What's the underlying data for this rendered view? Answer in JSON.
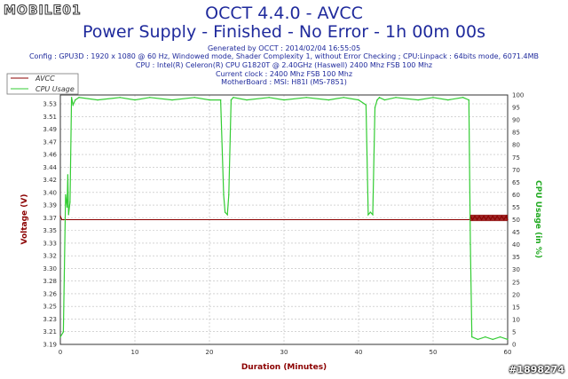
{
  "branding": {
    "logo_text": "MOBILE01",
    "watermark": "#1898274"
  },
  "header": {
    "title": "OCCT 4.4.0 - AVCC",
    "subtitle": "Power Supply - Finished - No Error - 1h 00m 00s",
    "generated": "Generated by OCCT : 2014/02/04 16:55:05",
    "config": "Config : GPU3D : 1920 x 1080 @ 60 Hz, Windowed mode, Shader Complexity 1, without Error Checking ; CPU:Linpack : 64bits mode, 6071.4MB",
    "cpu": "CPU : Intel(R) Celeron(R) CPU G1820T @ 2.40GHz (Haswell) 2400 Mhz FSB 100 Mhz",
    "clock": "Current clock : 2400 Mhz FSB 100 Mhz",
    "motherboard": "MotherBoard : MSI: H81I (MS-7851)"
  },
  "chart_data": {
    "type": "line",
    "xlabel": "Duration (Minutes)",
    "ylabel": "Voltage (V)",
    "y2label": "CPU Usage (in %)",
    "xlim": [
      0,
      60
    ],
    "ylim": [
      3.19,
      3.54
    ],
    "y2lim": [
      0,
      100
    ],
    "x_ticks": [
      "0",
      "10",
      "20",
      "30",
      "40",
      "50",
      "60"
    ],
    "y_ticks": [
      "3.19",
      "3.21",
      "3.23",
      "3.25",
      "3.26",
      "3.28",
      "3.30",
      "3.32",
      "3.33",
      "3.35",
      "3.37",
      "3.39",
      "3.40",
      "3.42",
      "3.44",
      "3.46",
      "3.47",
      "3.49",
      "3.51",
      "3.53"
    ],
    "y2_ticks": [
      "0",
      "5",
      "10",
      "15",
      "20",
      "25",
      "30",
      "35",
      "40",
      "45",
      "50",
      "55",
      "60",
      "65",
      "70",
      "75",
      "80",
      "85",
      "90",
      "95",
      "100"
    ],
    "legend_position": "top-left",
    "colors": {
      "avcc": "#8b0000",
      "cpu": "#33cc33",
      "grid": "#bbbbbb",
      "text": "#1f2a9c",
      "axis_label": "#8b0000",
      "axis2_label": "#22aa22"
    },
    "series": [
      {
        "name": "AVCC",
        "axis": "left",
        "x": [
          0,
          0.2,
          0.4,
          54.9,
          55,
          55.3,
          55.6,
          55.9,
          56.2,
          56.5,
          56.8,
          57.1,
          57.4,
          57.7,
          58,
          58.3,
          58.6,
          58.9,
          59.2,
          59.5,
          59.8,
          60
        ],
        "y": [
          3.37,
          3.365,
          3.365,
          3.365,
          3.37,
          3.365,
          3.37,
          3.365,
          3.37,
          3.365,
          3.37,
          3.365,
          3.37,
          3.365,
          3.37,
          3.365,
          3.37,
          3.365,
          3.37,
          3.365,
          3.37,
          3.365
        ]
      },
      {
        "name": "CPU Usage",
        "axis": "right",
        "x": [
          0,
          0.4,
          0.7,
          0.9,
          1.0,
          1.1,
          1.3,
          1.5,
          1.7,
          2.0,
          2.5,
          5,
          8,
          10,
          12,
          15,
          18,
          20,
          21.5,
          21.9,
          22.1,
          22.4,
          22.6,
          22.9,
          23.2,
          25,
          28,
          30,
          33,
          36,
          38,
          40,
          41,
          41.3,
          41.6,
          41.9,
          42.2,
          42.5,
          42.8,
          43.5,
          45,
          48,
          50,
          52,
          54,
          54.8,
          55.0,
          55.2,
          56,
          57,
          58,
          59,
          60
        ],
        "y": [
          3,
          5,
          60,
          55,
          68,
          52,
          57,
          99,
          96,
          98,
          99,
          98,
          99,
          98,
          99,
          98,
          99,
          98,
          98,
          60,
          53,
          52,
          60,
          98,
          99,
          98,
          99,
          98,
          99,
          98,
          99,
          98,
          96,
          52,
          53,
          52,
          95,
          98,
          99,
          98,
          99,
          98,
          99,
          98,
          99,
          98,
          40,
          3,
          2,
          3,
          2,
          3,
          2
        ]
      }
    ]
  }
}
